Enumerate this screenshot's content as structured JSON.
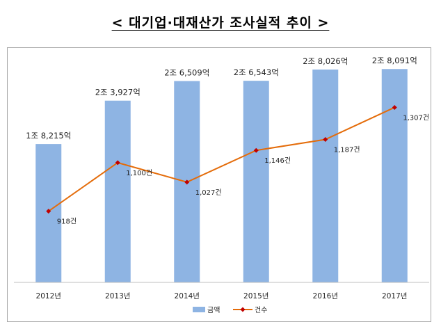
{
  "title": "< 대기업·대재산가 조사실적 추이 >",
  "chart_data": {
    "type": "bar",
    "categories": [
      "2012년",
      "2013년",
      "2014년",
      "2015년",
      "2016년",
      "2017년"
    ],
    "series": [
      {
        "name": "금액",
        "type": "bar",
        "color": "#8eb4e3",
        "values": [
          18215,
          23927,
          26509,
          26543,
          28026,
          28091
        ],
        "unit": "억",
        "labels": [
          "1조 8,215억",
          "2조 3,927억",
          "2조 6,509억",
          "2조 6,543억",
          "2조 8,026억",
          "2조 8,091억"
        ]
      },
      {
        "name": "건수",
        "type": "line",
        "color": "#e46c0a",
        "marker_color": "#c00000",
        "values": [
          918,
          1100,
          1027,
          1146,
          1187,
          1307
        ],
        "unit": "건",
        "labels": [
          "918건",
          "1,100건",
          "1,027건",
          "1,146건",
          "1,187건",
          "1,307건"
        ]
      }
    ],
    "legend": {
      "position": "bottom",
      "entries": [
        "금액",
        "건수"
      ]
    },
    "grid": false
  }
}
